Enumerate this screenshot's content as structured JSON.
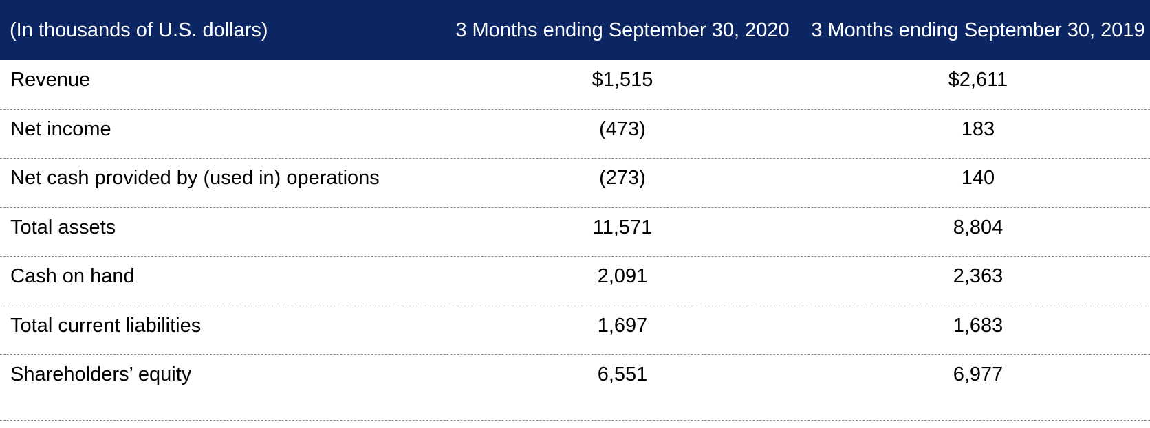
{
  "header": {
    "unit_label": "(In thousands of U.S. dollars)",
    "col_2020": "3 Months ending September 30, 2020",
    "col_2019": "3 Months ending September 30, 2019"
  },
  "rows": [
    {
      "label": "Revenue",
      "v2020": "$1,515",
      "v2019": "$2,611"
    },
    {
      "label": "Net income",
      "v2020": "(473)",
      "v2019": "183"
    },
    {
      "label": "Net cash provided by (used in) operations",
      "v2020": "(273)",
      "v2019": "140"
    },
    {
      "label": "Total assets",
      "v2020": "11,571",
      "v2019": "8,804"
    },
    {
      "label": "Cash on hand",
      "v2020": "2,091",
      "v2019": "2,363"
    },
    {
      "label": "Total current liabilities",
      "v2020": "1,697",
      "v2019": "1,683"
    },
    {
      "label": "Shareholders’ equity",
      "v2020": "6,551",
      "v2019": "6,977"
    }
  ],
  "colors": {
    "header_bg": "#0c2663",
    "header_text": "#ffffff",
    "body_text": "#000000",
    "divider": "#8a8a8a"
  },
  "chart_data": {
    "type": "table",
    "title": "Quarterly financial summary (in thousands of U.S. dollars)",
    "columns": [
      "(In thousands of U.S. dollars)",
      "3 Months ending September 30, 2020",
      "3 Months ending September 30, 2019"
    ],
    "rows": [
      [
        "Revenue",
        "$1,515",
        "$2,611"
      ],
      [
        "Net income",
        "(473)",
        "183"
      ],
      [
        "Net cash provided by (used in) operations",
        "(273)",
        "140"
      ],
      [
        "Total assets",
        "11,571",
        "8,804"
      ],
      [
        "Cash on hand",
        "2,091",
        "2,363"
      ],
      [
        "Total current liabilities",
        "1,697",
        "1,683"
      ],
      [
        "Shareholders’ equity",
        "6,551",
        "6,977"
      ]
    ],
    "values_2020": [
      1515,
      -473,
      -273,
      11571,
      2091,
      1697,
      6551
    ],
    "values_2019": [
      2611,
      183,
      140,
      8804,
      2363,
      1683,
      6977
    ],
    "layout": {
      "header_fill": "#0c2663",
      "row_dividers": "dashed",
      "value_alignment": "center"
    }
  }
}
